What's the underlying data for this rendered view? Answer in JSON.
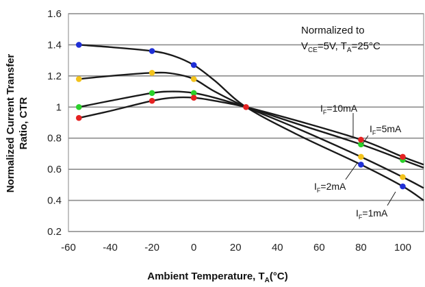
{
  "chart_data": {
    "type": "line",
    "xlabel": "Ambient Temperature, T",
    "xlabel_sub": "A",
    "xlabel_unit": "(°C)",
    "ylabel_line1": "Normalized Current Transfer",
    "ylabel_line2": "Ratio, CTR",
    "xlim": [
      -60,
      110
    ],
    "ylim": [
      0.2,
      1.6
    ],
    "x_ticks": [
      -60,
      -40,
      -20,
      0,
      20,
      40,
      60,
      80,
      100
    ],
    "x_tick_labels": [
      "-60",
      "-40",
      "-20",
      "0",
      "20",
      "40",
      "60",
      "80",
      "100"
    ],
    "y_ticks": [
      0.2,
      0.4,
      0.6,
      0.8,
      1.0,
      1.2,
      1.4,
      1.6
    ],
    "y_tick_labels": [
      "0.2",
      "0.4",
      "0.6",
      "0.8",
      "1",
      "1.2",
      "1.4",
      "1.6"
    ],
    "grid": "horizontal",
    "annotation": {
      "line1": "Normalized to",
      "v_main": "V",
      "v_sub": "CE",
      "v_rest": "=5V, T",
      "t_sub": "A",
      "t_rest": "=25°C"
    },
    "series": [
      {
        "name": "1mA",
        "label_main": "I",
        "label_sub": "F",
        "label_rest": "=1mA",
        "marker_color": "#1f2fd6",
        "x": [
          -55,
          -20,
          0,
          25,
          80,
          100
        ],
        "y": [
          1.4,
          1.36,
          1.27,
          1.0,
          0.63,
          0.49
        ],
        "curve": [
          [
            -55,
            1.4
          ],
          [
            -40,
            1.385
          ],
          [
            -20,
            1.36
          ],
          [
            -10,
            1.33
          ],
          [
            0,
            1.27
          ],
          [
            10,
            1.17
          ],
          [
            25,
            1.0
          ],
          [
            50,
            0.82
          ],
          [
            80,
            0.63
          ],
          [
            100,
            0.49
          ],
          [
            110,
            0.4
          ]
        ]
      },
      {
        "name": "2mA",
        "label_main": "I",
        "label_sub": "F",
        "label_rest": "=2mA",
        "marker_color": "#f2c21b",
        "x": [
          -55,
          -20,
          0,
          25,
          80,
          100
        ],
        "y": [
          1.18,
          1.22,
          1.18,
          1.0,
          0.68,
          0.55
        ],
        "curve": [
          [
            -55,
            1.18
          ],
          [
            -40,
            1.2
          ],
          [
            -20,
            1.22
          ],
          [
            -10,
            1.215
          ],
          [
            0,
            1.18
          ],
          [
            10,
            1.1
          ],
          [
            25,
            1.0
          ],
          [
            50,
            0.86
          ],
          [
            80,
            0.68
          ],
          [
            100,
            0.55
          ],
          [
            110,
            0.48
          ]
        ]
      },
      {
        "name": "5mA",
        "label_main": "I",
        "label_sub": "F",
        "label_rest": "=5mA",
        "marker_color": "#2bd12b",
        "x": [
          -55,
          -20,
          0,
          25,
          80,
          100
        ],
        "y": [
          1.0,
          1.09,
          1.09,
          1.0,
          0.76,
          0.66
        ],
        "curve": [
          [
            -55,
            1.0
          ],
          [
            -40,
            1.04
          ],
          [
            -20,
            1.09
          ],
          [
            -10,
            1.1
          ],
          [
            0,
            1.09
          ],
          [
            10,
            1.06
          ],
          [
            25,
            1.0
          ],
          [
            50,
            0.89
          ],
          [
            80,
            0.76
          ],
          [
            100,
            0.66
          ],
          [
            110,
            0.61
          ]
        ]
      },
      {
        "name": "10mA",
        "label_main": "I",
        "label_sub": "F",
        "label_rest": "=10mA",
        "marker_color": "#e52222",
        "x": [
          -55,
          -20,
          0,
          25,
          80,
          100
        ],
        "y": [
          0.93,
          1.04,
          1.06,
          1.0,
          0.79,
          0.68
        ],
        "curve": [
          [
            -55,
            0.93
          ],
          [
            -40,
            0.975
          ],
          [
            -20,
            1.04
          ],
          [
            -10,
            1.06
          ],
          [
            0,
            1.06
          ],
          [
            10,
            1.04
          ],
          [
            25,
            1.0
          ],
          [
            50,
            0.91
          ],
          [
            80,
            0.79
          ],
          [
            100,
            0.68
          ],
          [
            110,
            0.63
          ]
        ]
      }
    ],
    "center_marker": {
      "x": 25,
      "y": 1.0,
      "color": "#e52222"
    }
  }
}
